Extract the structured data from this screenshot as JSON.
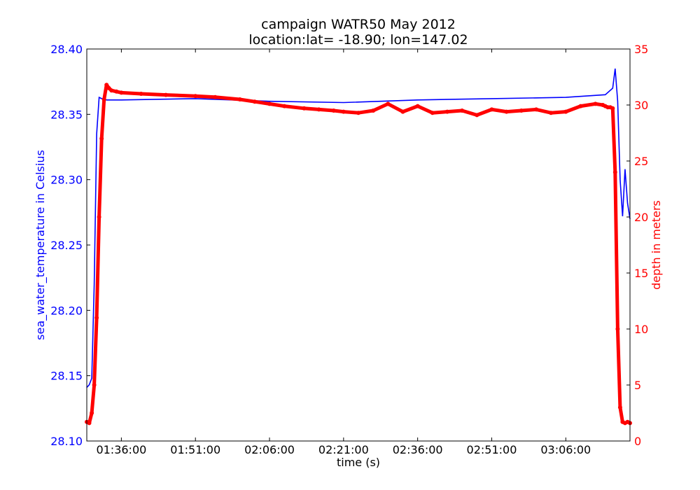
{
  "chart_data": {
    "type": "line",
    "title_line1": "campaign WATR50 May 2012",
    "title_line2": "location:lat= -18.90; lon=147.02",
    "xlabel": "time (s)",
    "ylabel_left": "sea_water_temperature in Celsius",
    "ylabel_right": "depth in meters",
    "x_range": [
      "01:29:00",
      "03:19:00"
    ],
    "x_ticks": [
      "01:36:00",
      "01:51:00",
      "02:06:00",
      "02:21:00",
      "02:36:00",
      "02:51:00",
      "03:06:00"
    ],
    "ylim_left": [
      28.1,
      28.4
    ],
    "ylim_right": [
      0,
      35
    ],
    "y_ticks_left": [
      "28.10",
      "28.15",
      "28.20",
      "28.25",
      "28.30",
      "28.35",
      "28.40"
    ],
    "y_ticks_right": [
      "0",
      "5",
      "10",
      "15",
      "20",
      "25",
      "30",
      "35"
    ],
    "colors": {
      "temperature": "#0000ff",
      "depth": "#ff0000"
    },
    "series": [
      {
        "axis": "left",
        "style": "line",
        "x": [
          "01:29:00",
          "01:29:30",
          "01:30:00",
          "01:30:30",
          "01:31:00",
          "01:31:30",
          "01:32:00",
          "01:33:00",
          "01:36:00",
          "01:51:00",
          "02:06:00",
          "02:21:00",
          "02:36:00",
          "02:51:00",
          "03:06:00",
          "03:10:00",
          "03:14:00",
          "03:15:30",
          "03:16:00",
          "03:16:30",
          "03:17:00",
          "03:17:30",
          "03:18:00",
          "03:18:30",
          "03:19:00"
        ],
        "values": [
          28.141,
          28.143,
          28.148,
          28.22,
          28.335,
          28.363,
          28.362,
          28.361,
          28.361,
          28.362,
          28.36,
          28.359,
          28.361,
          28.362,
          28.363,
          28.364,
          28.365,
          28.37,
          28.385,
          28.36,
          28.3,
          28.272,
          28.308,
          28.282,
          28.27
        ]
      },
      {
        "axis": "right",
        "style": "markers",
        "x": [
          "01:29:00",
          "01:29:30",
          "01:30:00",
          "01:30:30",
          "01:31:00",
          "01:31:30",
          "01:32:00",
          "01:32:30",
          "01:33:00",
          "01:33:30",
          "01:34:00",
          "01:35:00",
          "01:36:00",
          "01:40:00",
          "01:45:00",
          "01:51:00",
          "01:55:00",
          "02:00:00",
          "02:03:00",
          "02:06:00",
          "02:09:00",
          "02:13:00",
          "02:16:00",
          "02:19:00",
          "02:21:00",
          "02:24:00",
          "02:27:00",
          "02:30:00",
          "02:33:00",
          "02:36:00",
          "02:39:00",
          "02:42:00",
          "02:45:00",
          "02:48:00",
          "02:51:00",
          "02:54:00",
          "02:57:00",
          "03:00:00",
          "03:03:00",
          "03:06:00",
          "03:09:00",
          "03:12:00",
          "03:13:30",
          "03:14:00",
          "03:14:30",
          "03:15:00",
          "03:15:30",
          "03:16:00",
          "03:16:30",
          "03:17:00",
          "03:17:30",
          "03:18:00",
          "03:18:30",
          "03:19:00"
        ],
        "values": [
          1.7,
          1.6,
          2.5,
          5.0,
          11.0,
          20.0,
          27.0,
          30.5,
          31.8,
          31.5,
          31.3,
          31.2,
          31.1,
          31.0,
          30.9,
          30.8,
          30.7,
          30.5,
          30.3,
          30.1,
          29.9,
          29.7,
          29.6,
          29.5,
          29.4,
          29.3,
          29.5,
          30.1,
          29.4,
          29.9,
          29.3,
          29.4,
          29.5,
          29.1,
          29.6,
          29.4,
          29.5,
          29.6,
          29.3,
          29.4,
          29.9,
          30.1,
          30.0,
          29.9,
          29.8,
          29.8,
          29.7,
          24.0,
          10.0,
          3.0,
          1.7,
          1.6,
          1.7,
          1.6
        ]
      }
    ]
  }
}
